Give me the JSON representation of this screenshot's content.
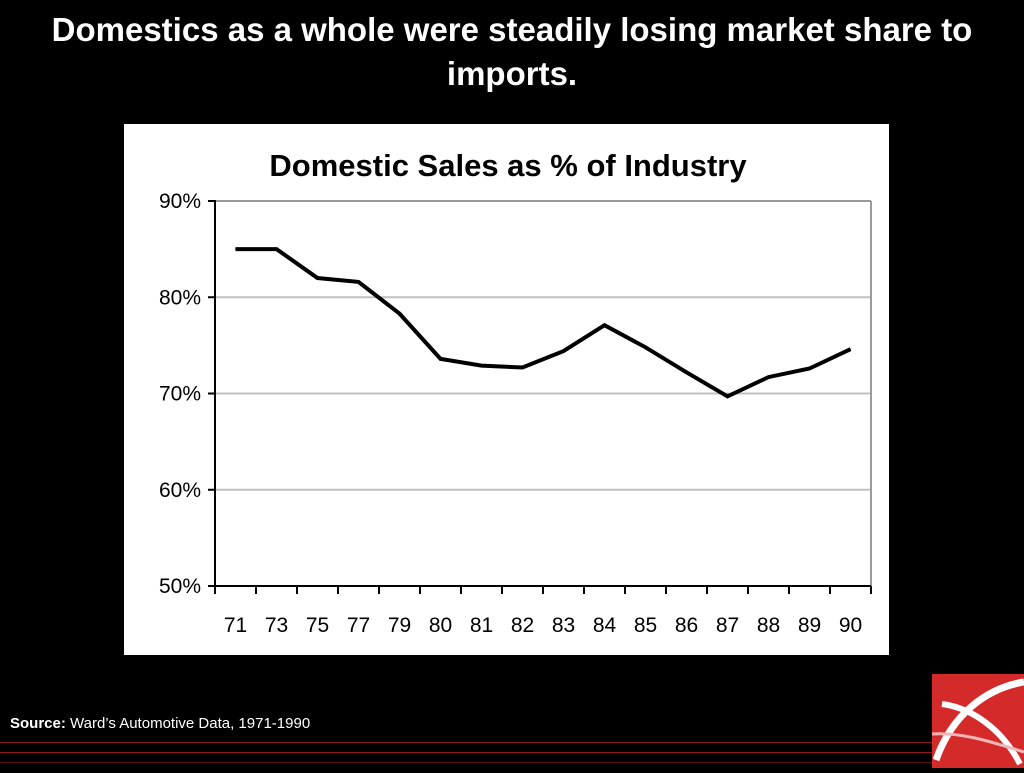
{
  "slide": {
    "title": "Domestics as a whole were steadily losing market share to imports."
  },
  "source": {
    "label": "Source:",
    "text": "Ward’s Automotive Data, 1971-1990"
  },
  "colors": {
    "background": "#000000",
    "brand_red": "#d42a2a",
    "line": "#000000",
    "grid": "#c0c0c0"
  },
  "logo": {
    "icon": "brand-logo-icon"
  },
  "chart_data": {
    "type": "line",
    "title": "Domestic Sales as % of Industry",
    "xlabel": "",
    "ylabel": "",
    "categories": [
      "71",
      "73",
      "75",
      "77",
      "79",
      "80",
      "81",
      "82",
      "83",
      "84",
      "85",
      "86",
      "87",
      "88",
      "89",
      "90"
    ],
    "values": [
      85.0,
      85.0,
      82.0,
      81.6,
      78.3,
      73.6,
      72.9,
      72.7,
      74.4,
      77.1,
      74.8,
      72.2,
      69.7,
      71.7,
      72.6,
      74.6
    ],
    "ylim": [
      50,
      90
    ],
    "yticks": [
      50,
      60,
      70,
      80,
      90
    ],
    "ytick_labels": [
      "50%",
      "60%",
      "70%",
      "80%",
      "90%"
    ],
    "grid": true,
    "legend": "none"
  }
}
